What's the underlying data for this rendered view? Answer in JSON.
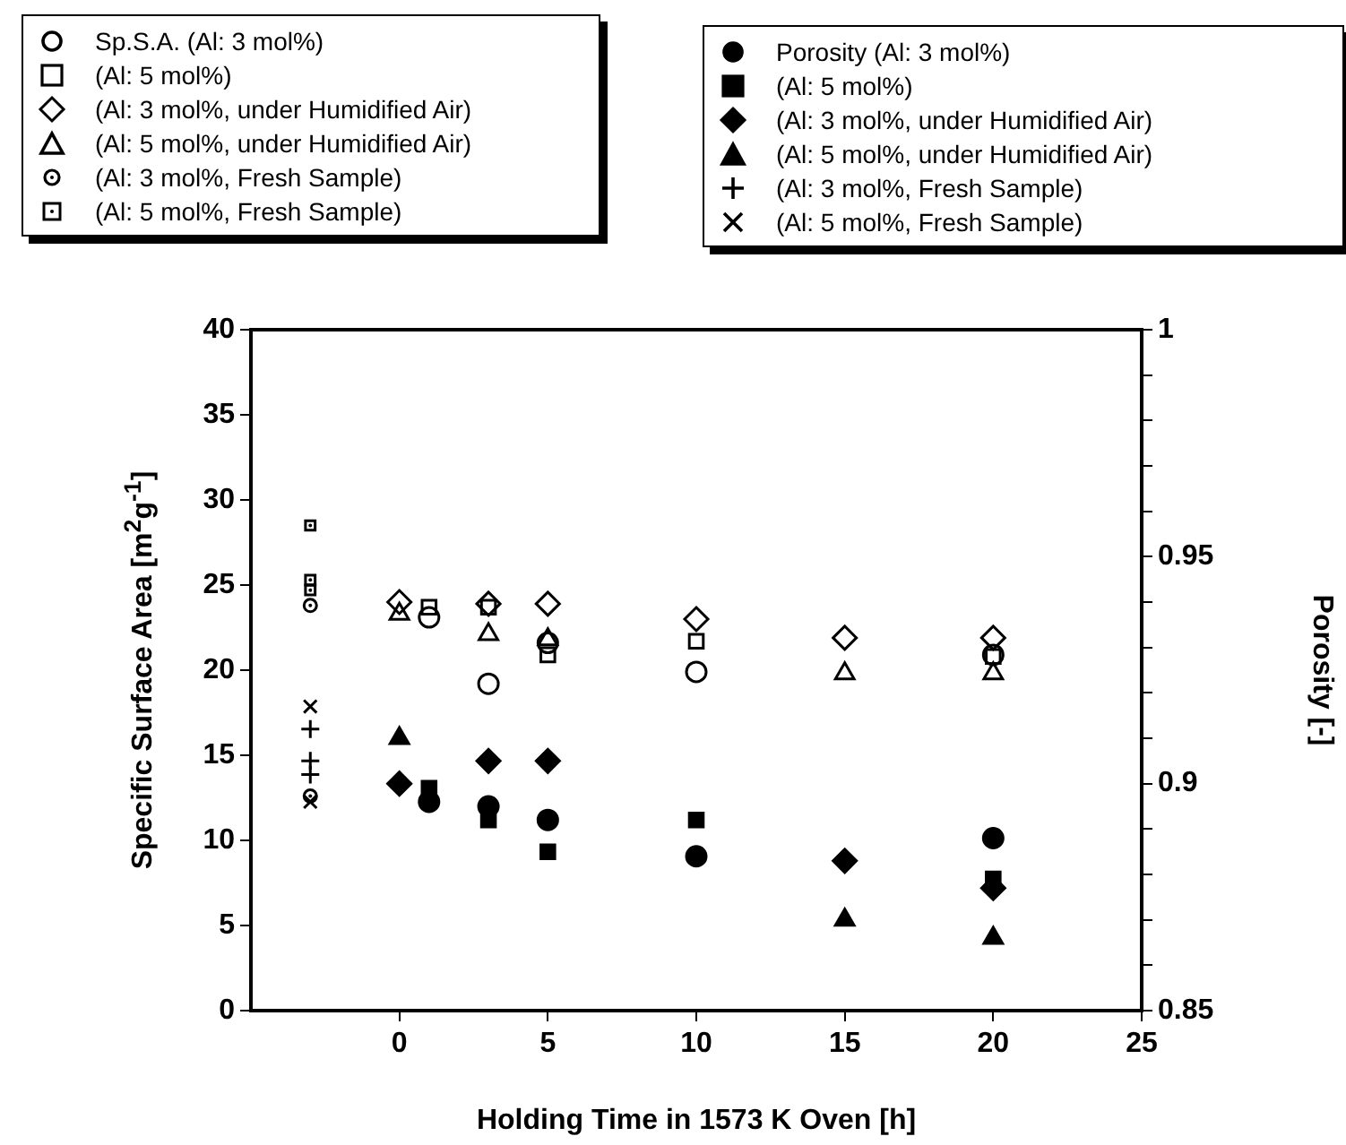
{
  "chart_data": {
    "type": "scatter",
    "xlabel": "Holding Time in 1573 K Oven [h]",
    "ylabel": "Specific Surface Area [m$^{2}$g$^{-1}$]",
    "y2label": "Porosity [-]",
    "xlim": [
      -5,
      25
    ],
    "xticks": [
      0,
      5,
      10,
      15,
      20,
      25
    ],
    "ylim": [
      0,
      40
    ],
    "yticks": [
      0,
      5,
      10,
      15,
      20,
      25,
      30,
      35,
      40
    ],
    "y2lim": [
      0.85,
      1
    ],
    "y2ticks": [
      0.85,
      {
        "value": 0.86,
        "label": null
      },
      {
        "value": 0.87,
        "label": null
      },
      {
        "value": 0.88,
        "label": null
      },
      {
        "value": 0.89,
        "label": null
      },
      0.9,
      {
        "value": 0.91,
        "label": null
      },
      {
        "value": 0.92,
        "label": null
      },
      {
        "value": 0.93,
        "label": null
      },
      {
        "value": 0.94,
        "label": null
      },
      0.95,
      {
        "value": 0.96,
        "label": null
      },
      {
        "value": 0.97,
        "label": null
      },
      {
        "value": 0.98,
        "label": null
      },
      {
        "value": 0.99,
        "label": null
      },
      1
    ],
    "grid": false,
    "legend": "top",
    "series": [
      {
        "name": "Sp.S.A. (Al: 3 mol%)",
        "color": "#000000",
        "marker": "circle",
        "x": [
          1,
          3,
          5,
          10,
          20
        ],
        "values": [
          23.1,
          19.2,
          21.6,
          19.9,
          20.9
        ]
      },
      {
        "name": "(Al: 5 mol%)",
        "color": "#000000",
        "marker": "square",
        "x": [
          1,
          3,
          5,
          10,
          20
        ],
        "values": [
          23.7,
          23.7,
          20.9,
          21.7,
          20.8
        ]
      },
      {
        "name": "(Al: 3 mol%, under Humidified Air)",
        "color": "#000000",
        "marker": "diamond",
        "x": [
          0,
          3,
          5,
          10,
          15,
          20
        ],
        "values": [
          24.0,
          23.9,
          23.9,
          23.0,
          21.9,
          21.9
        ]
      },
      {
        "name": "(Al: 5 mol%, under Humidified Air)",
        "color": "#000000",
        "marker": "triangle",
        "x": [
          0,
          3,
          5,
          15,
          20
        ],
        "values": [
          23.3,
          22.1,
          21.8,
          19.8,
          19.8
        ]
      },
      {
        "name": "(Al: 3 mol%, Fresh Sample)",
        "color": "#000000",
        "marker": "circle_dot",
        "x": [
          -3,
          -3
        ],
        "values": [
          23.8,
          12.6
        ]
      },
      {
        "name": "(Al: 5 mol%, Fresh Sample)",
        "color": "#000000",
        "marker": "square_dot",
        "x": [
          -3,
          -3,
          -3
        ],
        "values": [
          28.5,
          25.3,
          24.7
        ]
      },
      {
        "name": "Porosity (Al: 3 mol%)",
        "color": "#000000",
        "marker": "circle",
        "axis": "y2",
        "x": [
          1,
          3,
          5,
          10,
          20
        ],
        "values": [
          0.896,
          0.895,
          0.892,
          0.884,
          0.888
        ]
      },
      {
        "name": "(Al: 5 mol%)",
        "color": "#000000",
        "marker": "square",
        "axis": "y2",
        "x": [
          1,
          3,
          5,
          10,
          20
        ],
        "values": [
          0.899,
          0.892,
          0.885,
          0.892,
          0.879
        ]
      },
      {
        "name": "(Al: 3 mol%, under Humidified Air)",
        "color": "#000000",
        "marker": "diamond",
        "axis": "y2",
        "x": [
          0,
          3,
          5,
          15,
          20
        ],
        "values": [
          0.9,
          0.905,
          0.905,
          0.883,
          0.877
        ]
      },
      {
        "name": "(Al: 5 mol%, under Humidified Air)",
        "color": "#000000",
        "marker": "triangle",
        "axis": "y2",
        "x": [
          0,
          15,
          20
        ],
        "values": [
          0.91,
          0.87,
          0.866
        ]
      },
      {
        "name": "(Al: 3 mol%, Fresh Sample)",
        "color": "#000000",
        "marker": "plus",
        "axis": "y2",
        "x": [
          -3,
          -3,
          -3
        ],
        "values": [
          0.912,
          0.905,
          0.902
        ]
      },
      {
        "name": "(Al: 5 mol%, Fresh Sample)",
        "color": "#000000",
        "marker": "cross",
        "axis": "y2",
        "x": [
          -3,
          -3
        ],
        "values": [
          0.917,
          0.896
        ]
      }
    ]
  }
}
